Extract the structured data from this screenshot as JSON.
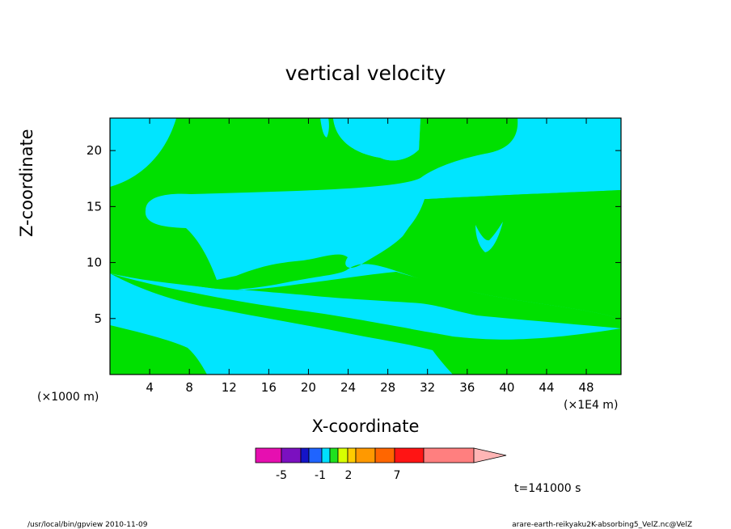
{
  "chart_data": {
    "type": "contour",
    "title": "vertical velocity",
    "xlabel": "X-coordinate",
    "ylabel": "Z-coordinate",
    "x_unit_label": "(×1000 m)",
    "x_scale_label": "(×1E4 m)",
    "xlim": [
      0,
      51.5
    ],
    "ylim": [
      0,
      22.9
    ],
    "x_ticks": [
      4,
      8,
      12,
      16,
      20,
      24,
      28,
      32,
      36,
      40,
      44,
      48
    ],
    "y_ticks": [
      5,
      10,
      15,
      20
    ],
    "time_label": "t=141000 s",
    "colorbar": {
      "colors": [
        "#e60fb0",
        "#7b10c0",
        "#1414c8",
        "#1f64ff",
        "#00e0ff",
        "#1ee11e",
        "#d8ff00",
        "#ffcc00",
        "#ff9900",
        "#ff6600",
        "#ff1414",
        "#ff7f7f",
        "#ffb5b5"
      ],
      "labels": [
        "-5",
        "-1",
        "2",
        "7"
      ]
    },
    "region_colors": {
      "negative": "#00e5ff",
      "positive": "#00e000"
    }
  },
  "footer": {
    "left": "/usr/local/bin/gpview   2010-11-09",
    "right": "arare-earth-reikyaku2K-absorbing5_VelZ.nc@VelZ"
  }
}
